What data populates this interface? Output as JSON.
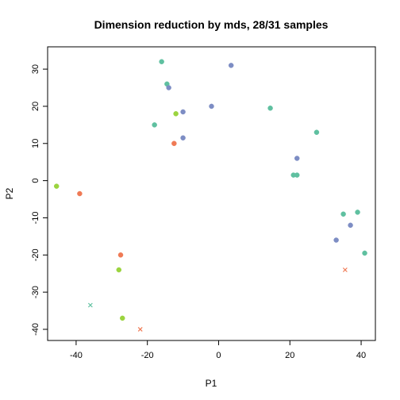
{
  "chart_data": {
    "type": "scatter",
    "title": "Dimension reduction by mds, 28/31 samples",
    "xlabel": "P1",
    "ylabel": "P2",
    "xlim": [
      -48,
      44
    ],
    "ylim": [
      -43,
      36
    ],
    "xticks": [
      -40,
      -20,
      0,
      20,
      40
    ],
    "yticks": [
      -40,
      -30,
      -20,
      -10,
      0,
      10,
      20,
      30
    ],
    "xtick_labels": [
      "-40",
      "-20",
      "0",
      "20",
      "40"
    ],
    "ytick_labels": [
      "-40",
      "-30",
      "-20",
      "-10",
      "0",
      "10",
      "20",
      "30"
    ],
    "grid": false,
    "legend": "none",
    "colors": {
      "teal": "#5fc0a0",
      "purple": "#7d8dc4",
      "orange": "#ef7a55",
      "green": "#9bd43f"
    },
    "points": [
      {
        "x": -16,
        "y": 32,
        "color": "teal",
        "marker": "dot"
      },
      {
        "x": 3.5,
        "y": 31,
        "color": "purple",
        "marker": "dot"
      },
      {
        "x": -14.5,
        "y": 26,
        "color": "teal",
        "marker": "dot"
      },
      {
        "x": -14,
        "y": 25,
        "color": "purple",
        "marker": "dot"
      },
      {
        "x": -2,
        "y": 20,
        "color": "purple",
        "marker": "dot"
      },
      {
        "x": 14.5,
        "y": 19.5,
        "color": "teal",
        "marker": "dot"
      },
      {
        "x": -10,
        "y": 18.5,
        "color": "purple",
        "marker": "dot"
      },
      {
        "x": -12,
        "y": 18,
        "color": "green",
        "marker": "dot"
      },
      {
        "x": -18,
        "y": 15,
        "color": "teal",
        "marker": "dot"
      },
      {
        "x": 27.5,
        "y": 13,
        "color": "teal",
        "marker": "dot"
      },
      {
        "x": -10,
        "y": 11.5,
        "color": "purple",
        "marker": "dot"
      },
      {
        "x": -12.5,
        "y": 10,
        "color": "orange",
        "marker": "dot"
      },
      {
        "x": 22,
        "y": 6,
        "color": "purple",
        "marker": "dot"
      },
      {
        "x": 21,
        "y": 1.5,
        "color": "teal",
        "marker": "dot"
      },
      {
        "x": 22,
        "y": 1.5,
        "color": "teal",
        "marker": "dot"
      },
      {
        "x": -45.5,
        "y": -1.5,
        "color": "green",
        "marker": "dot"
      },
      {
        "x": -39,
        "y": -3.5,
        "color": "orange",
        "marker": "dot"
      },
      {
        "x": 39,
        "y": -8.5,
        "color": "teal",
        "marker": "dot"
      },
      {
        "x": 35,
        "y": -9,
        "color": "teal",
        "marker": "dot"
      },
      {
        "x": 37,
        "y": -12,
        "color": "purple",
        "marker": "dot"
      },
      {
        "x": 33,
        "y": -16,
        "color": "purple",
        "marker": "dot"
      },
      {
        "x": 41,
        "y": -19.5,
        "color": "teal",
        "marker": "dot"
      },
      {
        "x": -27.5,
        "y": -20,
        "color": "orange",
        "marker": "dot"
      },
      {
        "x": 35.5,
        "y": -24,
        "color": "orange",
        "marker": "cross"
      },
      {
        "x": -28,
        "y": -24,
        "color": "green",
        "marker": "dot"
      },
      {
        "x": -36,
        "y": -33.5,
        "color": "teal",
        "marker": "cross"
      },
      {
        "x": -27,
        "y": -37,
        "color": "green",
        "marker": "dot"
      },
      {
        "x": -22,
        "y": -40,
        "color": "orange",
        "marker": "cross"
      }
    ]
  }
}
